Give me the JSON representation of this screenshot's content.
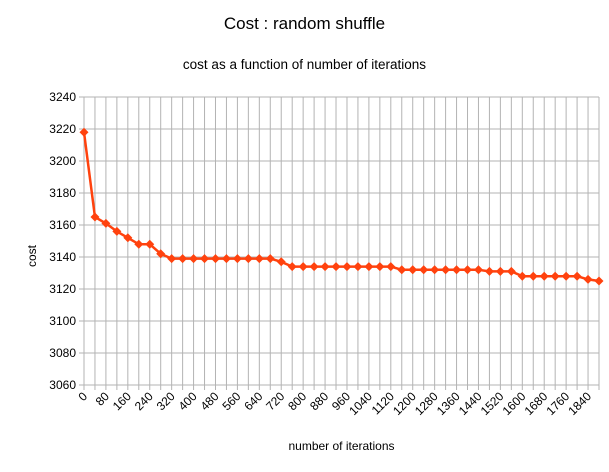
{
  "chart_data": {
    "type": "line",
    "title": "Cost : random shuffle",
    "subtitle": "cost as a function of number of iterations",
    "xlabel": "number of iterations",
    "ylabel": "cost",
    "ylim": [
      3060,
      3240
    ],
    "yticks": [
      3060,
      3080,
      3100,
      3120,
      3140,
      3160,
      3180,
      3200,
      3220,
      3240
    ],
    "xticks": [
      "0",
      "80",
      "160",
      "240",
      "320",
      "400",
      "480",
      "560",
      "640",
      "720",
      "800",
      "880",
      "960",
      "1040",
      "1120",
      "1200",
      "1280",
      "1360",
      "1440",
      "1520",
      "1600",
      "1680",
      "1760",
      "1840"
    ],
    "grid": true,
    "legend": "none",
    "series": [
      {
        "color": "#ff420e",
        "marker": "diamond",
        "x": [
          0,
          40,
          80,
          120,
          160,
          200,
          240,
          280,
          320,
          360,
          400,
          440,
          480,
          520,
          560,
          600,
          640,
          680,
          720,
          760,
          800,
          840,
          880,
          920,
          960,
          1000,
          1040,
          1080,
          1120,
          1160,
          1200,
          1240,
          1280,
          1320,
          1360,
          1400,
          1440,
          1480,
          1520,
          1560,
          1600,
          1640,
          1680,
          1720,
          1760,
          1800,
          1840,
          1880
        ],
        "values": [
          3218,
          3165,
          3161,
          3156,
          3152,
          3148,
          3148,
          3142,
          3139,
          3139,
          3139,
          3139,
          3139,
          3139,
          3139,
          3139,
          3139,
          3139,
          3137,
          3134,
          3134,
          3134,
          3134,
          3134,
          3134,
          3134,
          3134,
          3134,
          3134,
          3132,
          3132,
          3132,
          3132,
          3132,
          3132,
          3132,
          3132,
          3131,
          3131,
          3131,
          3128,
          3128,
          3128,
          3128,
          3128,
          3128,
          3126,
          3125
        ]
      }
    ]
  }
}
